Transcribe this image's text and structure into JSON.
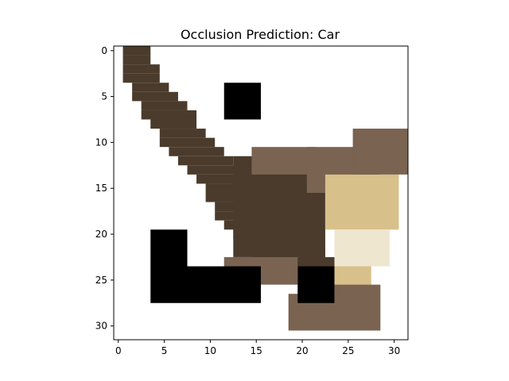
{
  "chart_data": {
    "type": "heatmap",
    "title": "Occlusion Prediction: Car",
    "xlabel": "",
    "ylabel": "",
    "xlim": [
      -0.5,
      31.5
    ],
    "ylim": [
      31.5,
      -0.5
    ],
    "xticks": [
      0,
      5,
      10,
      15,
      20,
      25,
      30
    ],
    "yticks": [
      0,
      5,
      10,
      15,
      20,
      25,
      30
    ],
    "grid": false,
    "image_description_size": [
      32,
      32
    ],
    "occlusion_boxes": [
      {
        "col_start": 12,
        "col_end": 15,
        "row_start": 4,
        "row_end": 7
      },
      {
        "col_start": 4,
        "col_end": 7,
        "row_start": 20,
        "row_end": 27
      },
      {
        "col_start": 8,
        "col_end": 15,
        "row_start": 24,
        "row_end": 27
      },
      {
        "col_start": 20,
        "col_end": 23,
        "row_start": 24,
        "row_end": 27
      }
    ],
    "colors": {
      "background": "#ffffff",
      "occlusion": "#000000",
      "dark_fur": "#4a3b2c",
      "mid_fur": "#7a6350",
      "light_fur": "#d8c08a",
      "pale": "#efe6cf"
    }
  }
}
